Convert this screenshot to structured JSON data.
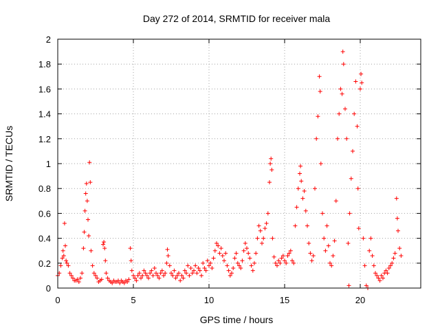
{
  "colors": {
    "series": "#ff0000",
    "axis": "#000000",
    "grid": "#a0a0a0"
  },
  "chart_data": {
    "type": "scatter",
    "title": "Day 272 of 2014, SRMTID for receiver mala",
    "xlabel": "GPS time / hours",
    "ylabel": "SRMTID / TECUs",
    "xlim": [
      0,
      24
    ],
    "ylim": [
      0,
      2
    ],
    "xticks": [
      0,
      5,
      10,
      15,
      20
    ],
    "yticks": [
      0,
      0.2,
      0.4,
      0.6,
      0.8,
      1,
      1.2,
      1.4,
      1.6,
      1.8,
      2
    ],
    "xtick_labels": [
      "0",
      "5",
      "10",
      "15",
      "20"
    ],
    "ytick_labels": [
      "0",
      "0.2",
      "0.4",
      "0.6",
      "0.8",
      "1",
      "1.2",
      "1.4",
      "1.6",
      "1.8",
      "2"
    ],
    "grid": true,
    "marker": "+",
    "series": [
      {
        "name": "SRMTID",
        "color": "#ff0000",
        "points": [
          [
            0.0,
            0.1
          ],
          [
            0.1,
            0.12
          ],
          [
            0.2,
            0.18
          ],
          [
            0.3,
            0.24
          ],
          [
            0.35,
            0.3
          ],
          [
            0.4,
            0.26
          ],
          [
            0.45,
            0.52
          ],
          [
            0.5,
            0.34
          ],
          [
            0.55,
            0.22
          ],
          [
            0.6,
            0.2
          ],
          [
            0.7,
            0.18
          ],
          [
            0.8,
            0.12
          ],
          [
            0.9,
            0.1
          ],
          [
            1.0,
            0.08
          ],
          [
            1.1,
            0.06
          ],
          [
            1.2,
            0.06
          ],
          [
            1.3,
            0.07
          ],
          [
            1.4,
            0.05
          ],
          [
            1.5,
            0.08
          ],
          [
            1.6,
            0.12
          ],
          [
            1.7,
            0.32
          ],
          [
            1.75,
            0.45
          ],
          [
            1.8,
            0.62
          ],
          [
            1.85,
            0.76
          ],
          [
            1.9,
            0.84
          ],
          [
            1.95,
            0.7
          ],
          [
            2.0,
            0.55
          ],
          [
            2.05,
            0.42
          ],
          [
            2.1,
            1.01
          ],
          [
            2.15,
            0.85
          ],
          [
            2.2,
            0.3
          ],
          [
            2.3,
            0.18
          ],
          [
            2.4,
            0.12
          ],
          [
            2.5,
            0.1
          ],
          [
            2.6,
            0.08
          ],
          [
            2.7,
            0.05
          ],
          [
            2.8,
            0.06
          ],
          [
            2.9,
            0.07
          ],
          [
            3.0,
            0.35
          ],
          [
            3.05,
            0.37
          ],
          [
            3.1,
            0.32
          ],
          [
            3.15,
            0.22
          ],
          [
            3.2,
            0.12
          ],
          [
            3.3,
            0.08
          ],
          [
            3.4,
            0.06
          ],
          [
            3.5,
            0.05
          ],
          [
            3.6,
            0.04
          ],
          [
            3.7,
            0.06
          ],
          [
            3.8,
            0.05
          ],
          [
            3.9,
            0.05
          ],
          [
            4.0,
            0.06
          ],
          [
            4.1,
            0.04
          ],
          [
            4.2,
            0.06
          ],
          [
            4.3,
            0.05
          ],
          [
            4.4,
            0.04
          ],
          [
            4.5,
            0.06
          ],
          [
            4.6,
            0.05
          ],
          [
            4.7,
            0.07
          ],
          [
            4.8,
            0.32
          ],
          [
            4.85,
            0.22
          ],
          [
            4.9,
            0.14
          ],
          [
            5.0,
            0.1
          ],
          [
            5.1,
            0.08
          ],
          [
            5.2,
            0.06
          ],
          [
            5.3,
            0.1
          ],
          [
            5.4,
            0.12
          ],
          [
            5.5,
            0.08
          ],
          [
            5.6,
            0.1
          ],
          [
            5.7,
            0.14
          ],
          [
            5.8,
            0.12
          ],
          [
            5.9,
            0.1
          ],
          [
            6.0,
            0.08
          ],
          [
            6.1,
            0.12
          ],
          [
            6.2,
            0.14
          ],
          [
            6.3,
            0.1
          ],
          [
            6.4,
            0.16
          ],
          [
            6.5,
            0.12
          ],
          [
            6.6,
            0.1
          ],
          [
            6.7,
            0.08
          ],
          [
            6.8,
            0.12
          ],
          [
            6.9,
            0.14
          ],
          [
            7.0,
            0.1
          ],
          [
            7.1,
            0.12
          ],
          [
            7.2,
            0.2
          ],
          [
            7.25,
            0.31
          ],
          [
            7.3,
            0.26
          ],
          [
            7.4,
            0.18
          ],
          [
            7.5,
            0.12
          ],
          [
            7.6,
            0.1
          ],
          [
            7.7,
            0.14
          ],
          [
            7.8,
            0.08
          ],
          [
            7.9,
            0.1
          ],
          [
            8.0,
            0.12
          ],
          [
            8.1,
            0.06
          ],
          [
            8.2,
            0.1
          ],
          [
            8.3,
            0.08
          ],
          [
            8.4,
            0.14
          ],
          [
            8.5,
            0.12
          ],
          [
            8.6,
            0.18
          ],
          [
            8.7,
            0.1
          ],
          [
            8.8,
            0.16
          ],
          [
            8.9,
            0.12
          ],
          [
            9.0,
            0.14
          ],
          [
            9.1,
            0.18
          ],
          [
            9.2,
            0.12
          ],
          [
            9.3,
            0.16
          ],
          [
            9.4,
            0.14
          ],
          [
            9.5,
            0.1
          ],
          [
            9.6,
            0.2
          ],
          [
            9.7,
            0.16
          ],
          [
            9.8,
            0.14
          ],
          [
            9.9,
            0.22
          ],
          [
            10.0,
            0.18
          ],
          [
            10.1,
            0.2
          ],
          [
            10.2,
            0.16
          ],
          [
            10.3,
            0.24
          ],
          [
            10.4,
            0.3
          ],
          [
            10.5,
            0.36
          ],
          [
            10.6,
            0.34
          ],
          [
            10.7,
            0.28
          ],
          [
            10.8,
            0.32
          ],
          [
            10.9,
            0.26
          ],
          [
            11.0,
            0.22
          ],
          [
            11.1,
            0.28
          ],
          [
            11.2,
            0.18
          ],
          [
            11.3,
            0.14
          ],
          [
            11.4,
            0.1
          ],
          [
            11.5,
            0.12
          ],
          [
            11.6,
            0.16
          ],
          [
            11.7,
            0.24
          ],
          [
            11.8,
            0.28
          ],
          [
            11.9,
            0.2
          ],
          [
            12.0,
            0.18
          ],
          [
            12.1,
            0.16
          ],
          [
            12.2,
            0.22
          ],
          [
            12.3,
            0.3
          ],
          [
            12.4,
            0.36
          ],
          [
            12.5,
            0.32
          ],
          [
            12.6,
            0.28
          ],
          [
            12.7,
            0.24
          ],
          [
            12.8,
            0.18
          ],
          [
            12.9,
            0.14
          ],
          [
            13.0,
            0.2
          ],
          [
            13.1,
            0.28
          ],
          [
            13.2,
            0.4
          ],
          [
            13.3,
            0.5
          ],
          [
            13.4,
            0.46
          ],
          [
            13.5,
            0.36
          ],
          [
            13.6,
            0.4
          ],
          [
            13.7,
            0.48
          ],
          [
            13.8,
            0.52
          ],
          [
            13.9,
            0.6
          ],
          [
            14.0,
            0.85
          ],
          [
            14.05,
            1.0
          ],
          [
            14.1,
            1.04
          ],
          [
            14.15,
            0.95
          ],
          [
            14.2,
            0.4
          ],
          [
            14.3,
            0.25
          ],
          [
            14.4,
            0.2
          ],
          [
            14.5,
            0.18
          ],
          [
            14.6,
            0.22
          ],
          [
            14.7,
            0.2
          ],
          [
            14.8,
            0.24
          ],
          [
            14.9,
            0.26
          ],
          [
            15.0,
            0.22
          ],
          [
            15.1,
            0.2
          ],
          [
            15.2,
            0.26
          ],
          [
            15.3,
            0.28
          ],
          [
            15.4,
            0.3
          ],
          [
            15.5,
            0.22
          ],
          [
            15.6,
            0.2
          ],
          [
            15.7,
            0.5
          ],
          [
            15.8,
            0.65
          ],
          [
            15.9,
            0.8
          ],
          [
            16.0,
            0.92
          ],
          [
            16.05,
            0.98
          ],
          [
            16.1,
            0.86
          ],
          [
            16.2,
            0.72
          ],
          [
            16.3,
            0.78
          ],
          [
            16.4,
            0.62
          ],
          [
            16.5,
            0.5
          ],
          [
            16.6,
            0.36
          ],
          [
            16.7,
            0.28
          ],
          [
            16.8,
            0.22
          ],
          [
            16.9,
            0.26
          ],
          [
            17.0,
            0.8
          ],
          [
            17.1,
            1.2
          ],
          [
            17.2,
            1.38
          ],
          [
            17.3,
            1.7
          ],
          [
            17.35,
            1.58
          ],
          [
            17.4,
            1.0
          ],
          [
            17.5,
            0.6
          ],
          [
            17.6,
            0.4
          ],
          [
            17.7,
            0.3
          ],
          [
            17.8,
            0.5
          ],
          [
            17.9,
            0.34
          ],
          [
            18.0,
            0.2
          ],
          [
            18.1,
            0.18
          ],
          [
            18.2,
            0.26
          ],
          [
            18.3,
            0.38
          ],
          [
            18.4,
            0.7
          ],
          [
            18.5,
            1.2
          ],
          [
            18.6,
            1.4
          ],
          [
            18.7,
            1.6
          ],
          [
            18.8,
            1.56
          ],
          [
            18.85,
            1.9
          ],
          [
            18.9,
            1.8
          ],
          [
            19.0,
            1.44
          ],
          [
            19.1,
            1.2
          ],
          [
            19.2,
            0.36
          ],
          [
            19.25,
            0.02
          ],
          [
            19.3,
            0.6
          ],
          [
            19.4,
            0.88
          ],
          [
            19.5,
            1.1
          ],
          [
            19.6,
            1.4
          ],
          [
            19.7,
            1.66
          ],
          [
            19.8,
            1.3
          ],
          [
            19.85,
            0.8
          ],
          [
            19.9,
            0.48
          ],
          [
            20.0,
            1.6
          ],
          [
            20.05,
            1.72
          ],
          [
            20.1,
            1.65
          ],
          [
            20.2,
            0.4
          ],
          [
            20.3,
            0.18
          ],
          [
            20.4,
            0.02
          ],
          [
            20.5,
            0.0
          ],
          [
            20.6,
            0.3
          ],
          [
            20.7,
            0.4
          ],
          [
            20.8,
            0.26
          ],
          [
            20.9,
            0.18
          ],
          [
            21.0,
            0.12
          ],
          [
            21.1,
            0.1
          ],
          [
            21.2,
            0.08
          ],
          [
            21.3,
            0.06
          ],
          [
            21.4,
            0.1
          ],
          [
            21.5,
            0.08
          ],
          [
            21.6,
            0.12
          ],
          [
            21.7,
            0.14
          ],
          [
            21.8,
            0.12
          ],
          [
            21.9,
            0.16
          ],
          [
            22.0,
            0.18
          ],
          [
            22.1,
            0.2
          ],
          [
            22.2,
            0.24
          ],
          [
            22.3,
            0.28
          ],
          [
            22.4,
            0.72
          ],
          [
            22.45,
            0.56
          ],
          [
            22.5,
            0.46
          ],
          [
            22.6,
            0.32
          ],
          [
            22.7,
            0.26
          ]
        ]
      }
    ]
  }
}
